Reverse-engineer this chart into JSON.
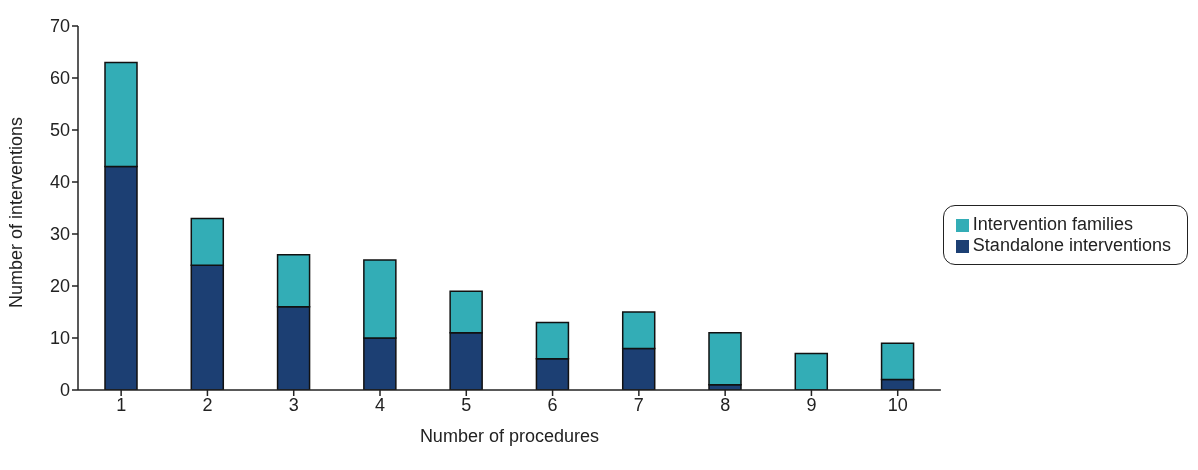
{
  "chart_data": {
    "type": "bar",
    "stacked": true,
    "xlabel": "Number of procedures",
    "ylabel": "Number of interventions",
    "categories": [
      "1",
      "2",
      "3",
      "4",
      "5",
      "6",
      "7",
      "8",
      "9",
      "10"
    ],
    "series": [
      {
        "name": "Standalone interventions",
        "color": "#1c3f73",
        "values": [
          43,
          24,
          16,
          10,
          11,
          6,
          8,
          1,
          0,
          2
        ]
      },
      {
        "name": "Intervention families",
        "color": "#33adb6",
        "values": [
          20,
          9,
          10,
          15,
          8,
          7,
          7,
          10,
          7,
          7
        ]
      }
    ],
    "ylim": [
      0,
      70
    ],
    "yticks": [
      0,
      10,
      20,
      30,
      40,
      50,
      60,
      70
    ],
    "grid": false,
    "legend": "right"
  }
}
